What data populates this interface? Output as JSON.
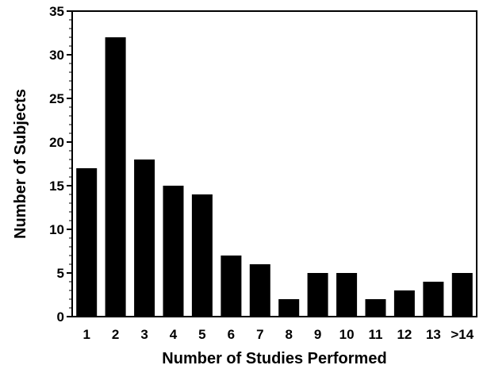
{
  "chart_data": {
    "type": "bar",
    "title": "",
    "xlabel": "Number of Studies Performed",
    "ylabel": "Number of Subjects",
    "categories": [
      "1",
      "2",
      "3",
      "4",
      "5",
      "6",
      "7",
      "8",
      "9",
      "10",
      "11",
      "12",
      "13",
      ">14"
    ],
    "values": [
      17,
      32,
      18,
      15,
      14,
      7,
      6,
      2,
      5,
      5,
      2,
      3,
      4,
      5
    ],
    "ylim": [
      0,
      35
    ],
    "yticks": [
      "0",
      "5",
      "10",
      "15",
      "20",
      "25",
      "30",
      "35"
    ],
    "ytick_values": [
      0,
      5,
      10,
      15,
      20,
      25,
      30,
      35
    ],
    "minor_tick_step": 1,
    "grid": false,
    "legend": "none",
    "colors": {
      "bar": "#000000",
      "axis": "#000000",
      "background": "#ffffff"
    }
  }
}
